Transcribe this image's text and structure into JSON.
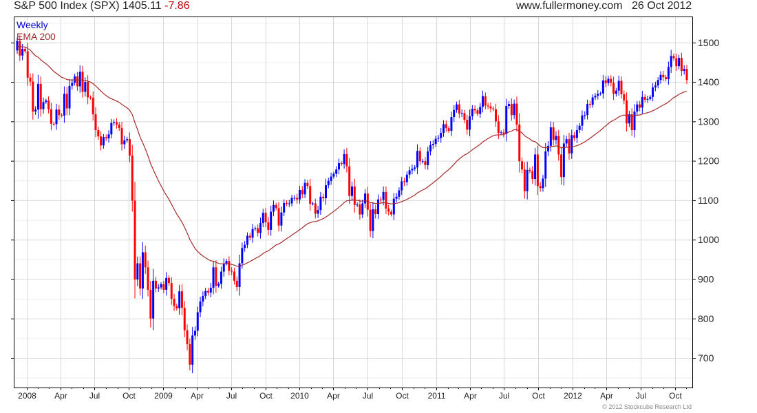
{
  "header": {
    "title": "S&P 500 Index (SPX) 1405.11",
    "change": "-7.86",
    "site": "www.fullermoney.com",
    "date": "26 Oct 2012"
  },
  "legend": {
    "series": "Weekly",
    "indicator": "EMA 200"
  },
  "copyright": "© 2012 Stockcube Research Ltd",
  "colors": {
    "up": "#0000ff",
    "down": "#ff0000",
    "ema": "#a52a2a",
    "grid": "#d8d8d8"
  },
  "chart_data": {
    "type": "candlestick",
    "title": "S&P 500 Index (SPX)",
    "frequency": "weekly",
    "start_week": "2007-12-07",
    "ylim": [
      625,
      1566
    ],
    "yticks": [
      700,
      800,
      900,
      1000,
      1100,
      1200,
      1300,
      1400,
      1500
    ],
    "ytick_labels": [
      "700",
      "800",
      "900",
      "1000",
      "1100",
      "1200",
      "1300",
      "1400",
      "1500"
    ],
    "xticks": [
      {
        "label": "2008",
        "date": "2008-01-01"
      },
      {
        "label": "Apr",
        "date": "2008-04-01"
      },
      {
        "label": "Jul",
        "date": "2008-07-01"
      },
      {
        "label": "Oct",
        "date": "2008-10-01"
      },
      {
        "label": "2009",
        "date": "2009-01-01"
      },
      {
        "label": "Apr",
        "date": "2009-04-01"
      },
      {
        "label": "Jul",
        "date": "2009-07-01"
      },
      {
        "label": "Oct",
        "date": "2009-10-01"
      },
      {
        "label": "2010",
        "date": "2010-01-01"
      },
      {
        "label": "Apr",
        "date": "2010-04-01"
      },
      {
        "label": "Jul",
        "date": "2010-07-01"
      },
      {
        "label": "Oct",
        "date": "2010-10-01"
      },
      {
        "label": "2011",
        "date": "2011-01-01"
      },
      {
        "label": "Apr",
        "date": "2011-04-01"
      },
      {
        "label": "Jul",
        "date": "2011-07-01"
      },
      {
        "label": "Oct",
        "date": "2011-10-01"
      },
      {
        "label": "2012",
        "date": "2012-01-01"
      },
      {
        "label": "Apr",
        "date": "2012-04-01"
      },
      {
        "label": "Jul",
        "date": "2012-07-01"
      },
      {
        "label": "Oct",
        "date": "2012-10-01"
      }
    ],
    "first_open": 1480,
    "ema_period_weeks": 40,
    "ema_seed": 1490,
    "closes": [
      1504,
      1467,
      1484,
      1478,
      1411,
      1401,
      1325,
      1330,
      1395,
      1331,
      1349,
      1353,
      1331,
      1294,
      1293,
      1330,
      1316,
      1315,
      1370,
      1333,
      1390,
      1398,
      1414,
      1389,
      1426,
      1375,
      1400,
      1361,
      1360,
      1318,
      1278,
      1262,
      1239,
      1260,
      1257,
      1267,
      1296,
      1298,
      1292,
      1283,
      1242,
      1252,
      1255,
      1213,
      1099,
      899,
      940,
      876,
      968,
      930,
      873,
      800,
      896,
      876,
      879,
      887,
      873,
      903,
      890,
      850,
      832,
      826,
      869,
      827,
      770,
      735,
      683,
      757,
      769,
      816,
      843,
      857,
      870,
      866,
      878,
      930,
      883,
      888,
      919,
      940,
      946,
      921,
      919,
      896,
      880,
      940,
      979,
      987,
      1010,
      1005,
      1027,
      1029,
      1017,
      1042,
      1068,
      1044,
      1025,
      1071,
      1088,
      1080,
      1036,
      1069,
      1093,
      1092,
      1092,
      1106,
      1106,
      1102,
      1126,
      1115,
      1144,
      1136,
      1091,
      1092,
      1066,
      1075,
      1109,
      1105,
      1138,
      1149,
      1160,
      1167,
      1178,
      1194,
      1192,
      1217,
      1186,
      1111,
      1135,
      1088,
      1089,
      1064,
      1092,
      1117,
      1076,
      1022,
      1077,
      1065,
      1102,
      1101,
      1121,
      1079,
      1071,
      1064,
      1104,
      1109,
      1125,
      1148,
      1146,
      1165,
      1176,
      1180,
      1183,
      1225,
      1199,
      1199,
      1189,
      1224,
      1240,
      1243,
      1256,
      1258,
      1271,
      1293,
      1283,
      1276,
      1311,
      1329,
      1343,
      1320,
      1321,
      1304,
      1279,
      1313,
      1332,
      1328,
      1319,
      1337,
      1364,
      1340,
      1338,
      1333,
      1331,
      1300,
      1271,
      1272,
      1268,
      1339,
      1344,
      1316,
      1345,
      1292,
      1199,
      1178,
      1123,
      1177,
      1174,
      1154,
      1216,
      1136,
      1131,
      1155,
      1224,
      1238,
      1285,
      1253,
      1263,
      1216,
      1159,
      1244,
      1255,
      1219,
      1265,
      1258,
      1278,
      1289,
      1315,
      1316,
      1344,
      1342,
      1361,
      1365,
      1370,
      1371,
      1404,
      1397,
      1408,
      1398,
      1370,
      1378,
      1403,
      1369,
      1353,
      1295,
      1318,
      1278,
      1325,
      1343,
      1335,
      1362,
      1355,
      1357,
      1362,
      1386,
      1391,
      1405,
      1418,
      1412,
      1407,
      1438,
      1466,
      1460,
      1440,
      1461,
      1428,
      1433,
      1405
    ]
  }
}
